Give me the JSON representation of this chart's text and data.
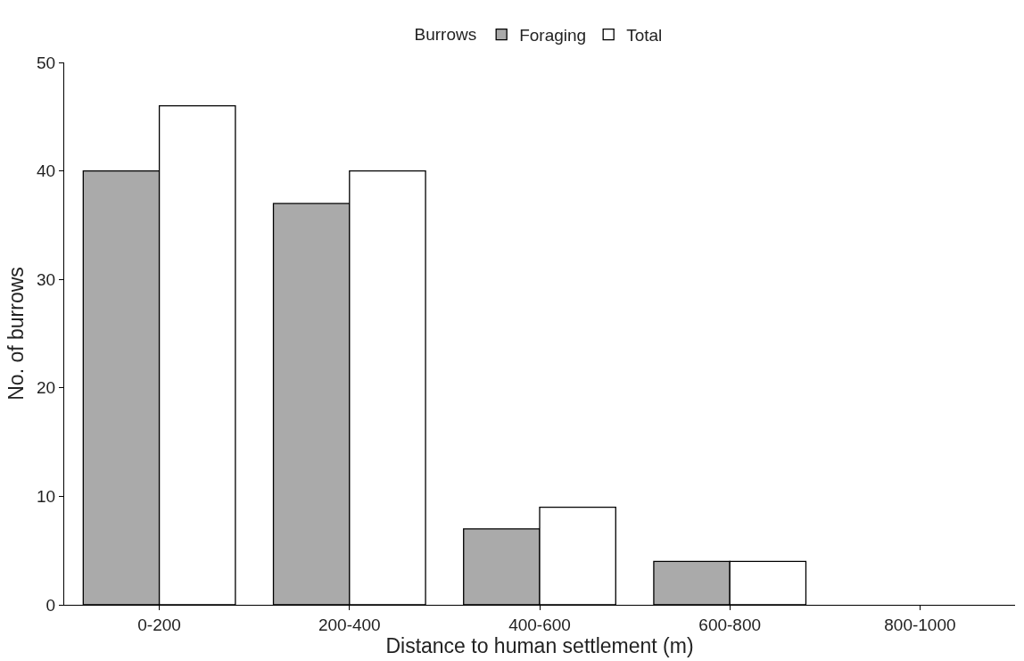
{
  "chart_data": {
    "type": "bar",
    "xlabel": "Distance to human settlement (m)",
    "ylabel": "No. of burrows",
    "legend_title": "Burrows",
    "categories": [
      "0-200",
      "200-400",
      "400-600",
      "600-800",
      "800-1000"
    ],
    "series": [
      {
        "name": "Foraging",
        "color": "#aaaaaa",
        "values": [
          40,
          37,
          7,
          4,
          0
        ]
      },
      {
        "name": "Total",
        "color": "#ffffff",
        "values": [
          46,
          40,
          9,
          4,
          0
        ]
      }
    ],
    "ylim": [
      0,
      50
    ],
    "yticks": [
      0,
      10,
      20,
      30,
      40,
      50
    ],
    "legend": "top"
  }
}
